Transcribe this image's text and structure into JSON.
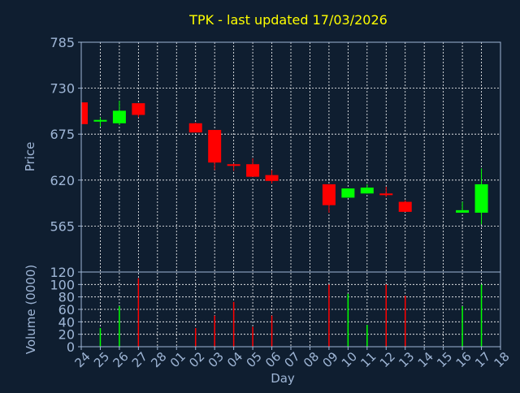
{
  "chart_data": [
    {
      "type": "candlestick",
      "title": "TPK - last updated 17/03/2026",
      "ylabel": "Price",
      "ylim": [
        510,
        785
      ],
      "yticks": [
        565,
        620,
        675,
        730,
        785
      ],
      "grid": true,
      "x_tick_labels": [
        "24",
        "25",
        "26",
        "27",
        "28",
        "01",
        "02",
        "03",
        "04",
        "05",
        "06",
        "07",
        "08",
        "09",
        "10",
        "11",
        "12",
        "13",
        "14",
        "15",
        "16",
        "17",
        "18"
      ],
      "candles": [
        {
          "day": "24",
          "open": 713,
          "close": 687,
          "high": 713,
          "low": 687
        },
        {
          "day": "25",
          "open": 690,
          "close": 692,
          "high": 695,
          "low": 684
        },
        {
          "day": "26",
          "open": 688,
          "close": 703,
          "high": 715,
          "low": 686
        },
        {
          "day": "27",
          "open": 712,
          "close": 698,
          "high": 712,
          "low": 695
        },
        {
          "day": "02",
          "open": 688,
          "close": 677,
          "high": 689,
          "low": 677
        },
        {
          "day": "03",
          "open": 680,
          "close": 641,
          "high": 680,
          "low": 632
        },
        {
          "day": "04",
          "open": 639,
          "close": 637,
          "high": 640,
          "low": 631
        },
        {
          "day": "05",
          "open": 639,
          "close": 624,
          "high": 646,
          "low": 624
        },
        {
          "day": "06",
          "open": 626,
          "close": 619,
          "high": 632,
          "low": 616
        },
        {
          "day": "09",
          "open": 615,
          "close": 590,
          "high": 615,
          "low": 581
        },
        {
          "day": "10",
          "open": 599,
          "close": 610,
          "high": 610,
          "low": 599
        },
        {
          "day": "11",
          "open": 604,
          "close": 611,
          "high": 615,
          "low": 604
        },
        {
          "day": "12",
          "open": 604,
          "close": 602,
          "high": 612,
          "low": 600
        },
        {
          "day": "13",
          "open": 594,
          "close": 582,
          "high": 596,
          "low": 582
        },
        {
          "day": "16",
          "open": 581,
          "close": 584,
          "high": 594,
          "low": 581
        },
        {
          "day": "17",
          "open": 581,
          "close": 615,
          "high": 634,
          "low": 567
        }
      ]
    },
    {
      "type": "bar",
      "ylabel": "Volume (0000)",
      "ylim": [
        0,
        120
      ],
      "yticks": [
        0,
        20,
        40,
        60,
        80,
        100,
        120
      ],
      "xlabel": "Day",
      "grid": true,
      "categories": [
        "25",
        "26",
        "27",
        "02",
        "03",
        "04",
        "05",
        "06",
        "09",
        "10",
        "11",
        "12",
        "13",
        "16",
        "17"
      ],
      "values": [
        30,
        65,
        110,
        30,
        50,
        72,
        32,
        50,
        100,
        85,
        35,
        100,
        82,
        65,
        100
      ],
      "colors": [
        "#00ff00",
        "#00ff00",
        "#ff0000",
        "#ff0000",
        "#ff0000",
        "#ff0000",
        "#ff0000",
        "#ff0000",
        "#ff0000",
        "#00ff00",
        "#00ff00",
        "#ff0000",
        "#ff0000",
        "#00ff00",
        "#00ff00"
      ]
    }
  ],
  "colors": {
    "background": "#0f1e30",
    "axis": "#9fb6d6",
    "grid": "#ffffff",
    "title": "#ffff00",
    "up": "#00ff00",
    "down": "#ff0000"
  }
}
